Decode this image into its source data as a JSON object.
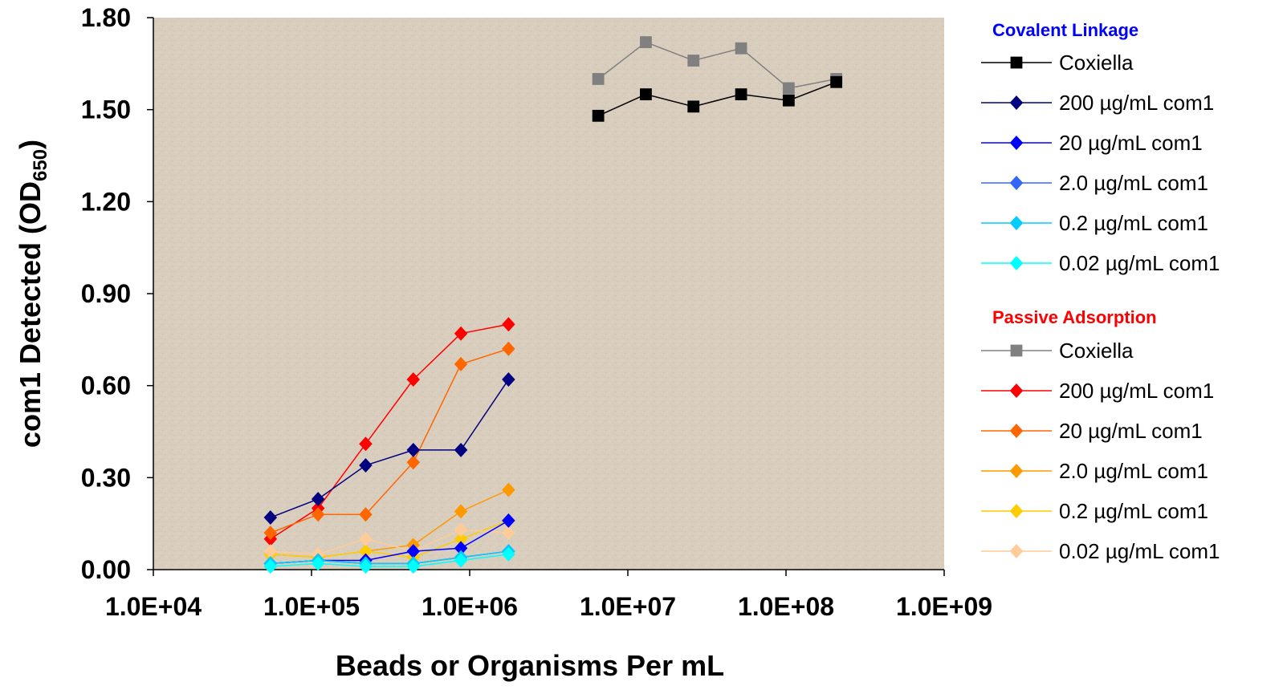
{
  "chart_data": {
    "type": "scatter",
    "xlabel": "Beads or Organisms Per mL",
    "ylabel": "com1 Detected (OD",
    "ylabel_subscript": "650",
    "ylabel_close": ")",
    "x_scale": "log",
    "xlim": [
      10000,
      1000000000
    ],
    "ylim": [
      0,
      1.8
    ],
    "x_ticks": [
      10000,
      100000,
      1000000,
      10000000,
      100000000,
      1000000000
    ],
    "x_tick_labels": [
      "1.0E+04",
      "1.0E+05",
      "1.0E+06",
      "1.0E+07",
      "1.0E+08",
      "1.0E+09"
    ],
    "y_ticks": [
      0,
      0.3,
      0.6,
      0.9,
      1.2,
      1.5,
      1.8
    ],
    "y_tick_labels": [
      "0.00",
      "0.30",
      "0.60",
      "0.90",
      "1.20",
      "1.50",
      "1.80"
    ],
    "plot_background": "#d9cdbd",
    "legend_position": "right",
    "groups": [
      {
        "name": "Covalent Linkage",
        "color": "#0000ff",
        "series": [
          {
            "name": "Coxiella",
            "color": "#000000",
            "marker": "square",
            "x": [
              6500000,
              13000000,
              26000000,
              52000000,
              104000000,
              208000000
            ],
            "y": [
              1.48,
              1.55,
              1.51,
              1.55,
              1.53,
              1.59
            ]
          },
          {
            "name": "200 µg/mL com1",
            "color": "#000080",
            "marker": "diamond",
            "x": [
              55000,
              110000,
              220000,
              440000,
              880000,
              1760000
            ],
            "y": [
              0.17,
              0.23,
              0.34,
              0.39,
              0.39,
              0.62
            ]
          },
          {
            "name": "20 µg/mL com1",
            "color": "#0000ff",
            "marker": "diamond",
            "x": [
              55000,
              110000,
              220000,
              440000,
              880000,
              1760000
            ],
            "y": [
              0.02,
              0.03,
              0.03,
              0.06,
              0.07,
              0.16
            ]
          },
          {
            "name": "2.0 µg/mL com1",
            "color": "#3366ff",
            "marker": "diamond",
            "x": [
              55000,
              110000,
              220000,
              440000,
              880000,
              1760000
            ],
            "y": [
              0.02,
              0.03,
              0.02,
              0.02,
              0.04,
              0.06
            ]
          },
          {
            "name": "0.2 µg/mL com1",
            "color": "#00ccff",
            "marker": "diamond",
            "x": [
              55000,
              110000,
              220000,
              440000,
              880000,
              1760000
            ],
            "y": [
              0.02,
              0.03,
              0.02,
              0.02,
              0.04,
              0.06
            ]
          },
          {
            "name": "0.02 µg/mL com1",
            "color": "#00ffff",
            "marker": "diamond",
            "x": [
              55000,
              110000,
              220000,
              440000,
              880000,
              1760000
            ],
            "y": [
              0.01,
              0.02,
              0.01,
              0.01,
              0.03,
              0.05
            ]
          }
        ]
      },
      {
        "name": "Passive Adsorption",
        "color": "#ff0000",
        "series": [
          {
            "name": "Coxiella",
            "color": "#808080",
            "marker": "square",
            "x": [
              6500000,
              13000000,
              26000000,
              52000000,
              104000000,
              208000000
            ],
            "y": [
              1.6,
              1.72,
              1.66,
              1.7,
              1.57,
              1.6
            ]
          },
          {
            "name": "200 µg/mL com1",
            "color": "#ff0000",
            "marker": "diamond",
            "x": [
              55000,
              110000,
              220000,
              440000,
              880000,
              1760000
            ],
            "y": [
              0.1,
              0.2,
              0.41,
              0.62,
              0.77,
              0.8
            ]
          },
          {
            "name": "20 µg/mL com1",
            "color": "#ff6600",
            "marker": "diamond",
            "x": [
              55000,
              110000,
              220000,
              440000,
              880000,
              1760000
            ],
            "y": [
              0.12,
              0.18,
              0.18,
              0.35,
              0.67,
              0.72
            ]
          },
          {
            "name": "2.0 µg/mL com1",
            "color": "#ff9900",
            "marker": "diamond",
            "x": [
              55000,
              110000,
              220000,
              440000,
              880000,
              1760000
            ],
            "y": [
              0.05,
              0.04,
              0.06,
              0.08,
              0.19,
              0.26
            ]
          },
          {
            "name": "0.2 µg/mL com1",
            "color": "#ffcc00",
            "marker": "diamond",
            "x": [
              55000,
              110000,
              220000,
              440000,
              880000,
              1760000
            ],
            "y": [
              0.05,
              0.04,
              0.06,
              0.04,
              0.1,
              0.16
            ]
          },
          {
            "name": "0.02 µg/mL com1",
            "color": "#ffcc99",
            "marker": "diamond",
            "x": [
              55000,
              110000,
              220000,
              440000,
              880000,
              1760000
            ],
            "y": [
              0.06,
              0.05,
              0.1,
              0.06,
              0.13,
              0.12
            ]
          }
        ]
      }
    ]
  }
}
